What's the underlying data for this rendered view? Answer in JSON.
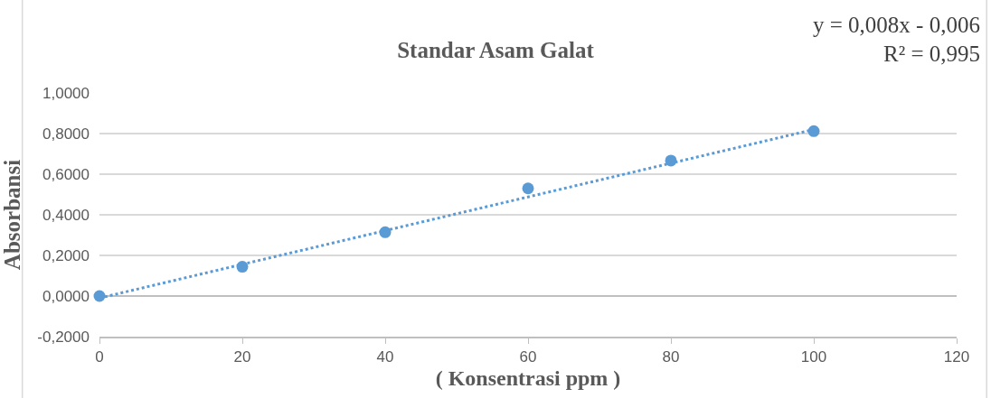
{
  "chart_data": {
    "type": "scatter",
    "title": "Standar Asam Galat",
    "xlabel": "( Konsentrasi ppm )",
    "ylabel": "Absorbansi",
    "annotations": [
      "y = 0,008x - 0,006",
      "R² = 0,995"
    ],
    "x": [
      0,
      20,
      40,
      60,
      80,
      100
    ],
    "series": [
      {
        "color": "#5b9bd5",
        "marker": "circle",
        "values": [
          0.0,
          0.144,
          0.314,
          0.53,
          0.667,
          0.812
        ]
      },
      {
        "type": "line",
        "color": "#5b9bd5",
        "line_style": "dotted",
        "marker": "none",
        "x": [
          0,
          100
        ],
        "values": [
          -0.01,
          0.82
        ]
      }
    ],
    "xlim": [
      0,
      120
    ],
    "xticks": [
      0,
      20,
      40,
      60,
      80,
      100,
      120
    ],
    "ylim": [
      -0.2,
      1.0
    ],
    "yticks": [
      {
        "value": -0.2,
        "label": "-0,2000"
      },
      {
        "value": 0,
        "label": "0,0000"
      },
      {
        "value": 0.2,
        "label": "0,2000"
      },
      {
        "value": 0.4,
        "label": "0,4000"
      },
      {
        "value": 0.6,
        "label": "0,6000"
      },
      {
        "value": 0.8,
        "label": "0,8000"
      },
      {
        "value": 1.0,
        "label": "1,0000"
      }
    ],
    "grid": "y"
  }
}
